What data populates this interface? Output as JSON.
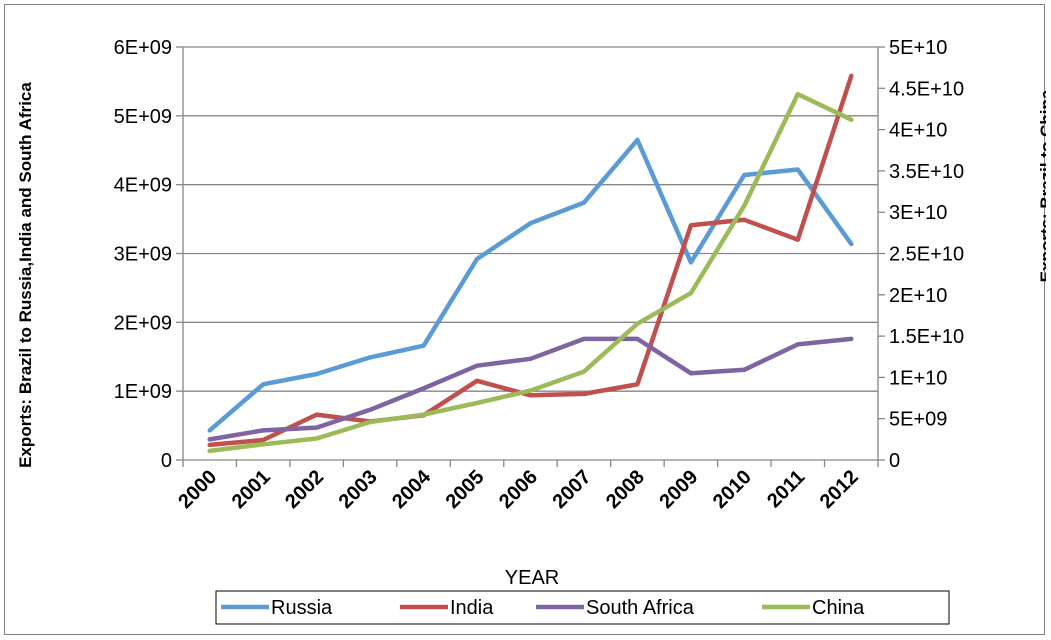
{
  "chart_data": {
    "type": "line",
    "x": [
      "2000",
      "2001",
      "2002",
      "2003",
      "2004",
      "2005",
      "2006",
      "2007",
      "2008",
      "2009",
      "2010",
      "2011",
      "2012"
    ],
    "xlabel": "YEAR",
    "ylabel_left": "Exports: Brazil to Russia,India and South Africa",
    "ylabel_right": "Exports: Brazil to China",
    "ylim_left": [
      0,
      6000000000
    ],
    "ylim_right": [
      0,
      50000000000
    ],
    "yticks_left": [
      {
        "value": 0,
        "label": "0"
      },
      {
        "value": 1000000000,
        "label": "1E+09"
      },
      {
        "value": 2000000000,
        "label": "2E+09"
      },
      {
        "value": 3000000000,
        "label": "3E+09"
      },
      {
        "value": 4000000000,
        "label": "4E+09"
      },
      {
        "value": 5000000000,
        "label": "5E+09"
      },
      {
        "value": 6000000000,
        "label": "6E+09"
      }
    ],
    "yticks_right": [
      {
        "value": 0,
        "label": "0"
      },
      {
        "value": 5000000000,
        "label": "5E+09"
      },
      {
        "value": 10000000000,
        "label": "1E+10"
      },
      {
        "value": 15000000000,
        "label": "1.5E+10"
      },
      {
        "value": 20000000000,
        "label": "2E+10"
      },
      {
        "value": 25000000000,
        "label": "2.5E+10"
      },
      {
        "value": 30000000000,
        "label": "3E+10"
      },
      {
        "value": 35000000000,
        "label": "3.5E+10"
      },
      {
        "value": 40000000000,
        "label": "4E+10"
      },
      {
        "value": 45000000000,
        "label": "4.5E+10"
      },
      {
        "value": 50000000000,
        "label": "5E+10"
      }
    ],
    "grid": true,
    "legend_position": "bottom",
    "series": [
      {
        "name": "Russia",
        "axis": "left",
        "color": "#5b9bd5",
        "values": [
          430000000,
          1100000000,
          1250000000,
          1490000000,
          1660000000,
          2920000000,
          3440000000,
          3740000000,
          4650000000,
          2870000000,
          4140000000,
          4220000000,
          3140000000
        ]
      },
      {
        "name": "India",
        "axis": "left",
        "color": "#c0504d",
        "values": [
          220000000,
          290000000,
          660000000,
          560000000,
          650000000,
          1150000000,
          940000000,
          960000000,
          1100000000,
          3410000000,
          3490000000,
          3200000000,
          5580000000
        ]
      },
      {
        "name": "South Africa",
        "axis": "left",
        "color": "#8064a2",
        "values": [
          300000000,
          430000000,
          470000000,
          730000000,
          1040000000,
          1370000000,
          1470000000,
          1760000000,
          1760000000,
          1260000000,
          1310000000,
          1680000000,
          1760000000
        ]
      },
      {
        "name": "China",
        "axis": "right",
        "color": "#9bbb59",
        "values": [
          1100000000,
          1900000000,
          2600000000,
          4600000000,
          5500000000,
          6900000000,
          8400000000,
          10700000000,
          16500000000,
          20200000000,
          30800000000,
          44300000000,
          41200000000
        ]
      }
    ]
  }
}
